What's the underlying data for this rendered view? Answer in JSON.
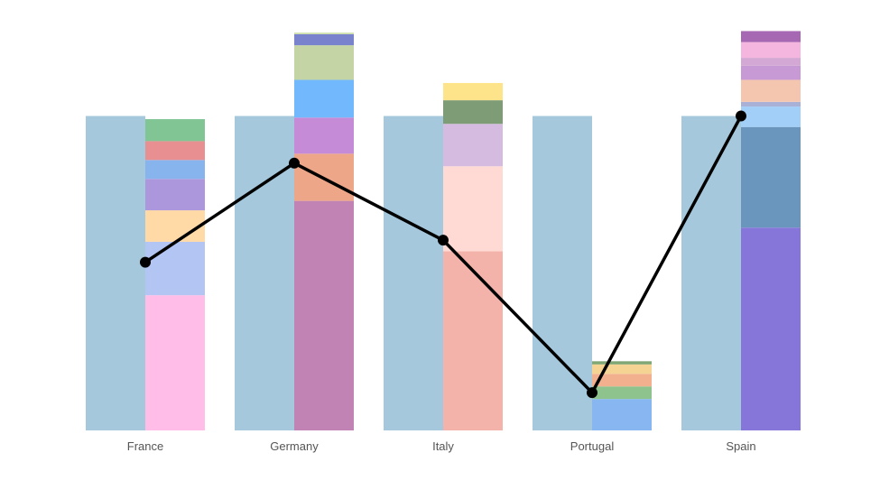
{
  "chart_data": {
    "type": "bar",
    "categories": [
      "France",
      "Germany",
      "Italy",
      "Portugal",
      "Spain"
    ],
    "reference_values": [
      100,
      100,
      100,
      100,
      100
    ],
    "reference_color": "#a5c8dc",
    "ylim": [
      0,
      130
    ],
    "grid": false,
    "legend": "none",
    "stacks": [
      {
        "category": "France",
        "segments": [
          {
            "value": 43,
            "color": "#ffbde8"
          },
          {
            "value": 17,
            "color": "#b3c6f3"
          },
          {
            "value": 10,
            "color": "#ffd9a6"
          },
          {
            "value": 10,
            "color": "#ad97dc"
          },
          {
            "value": 6,
            "color": "#88b4ee"
          },
          {
            "value": 6,
            "color": "#e88f92"
          },
          {
            "value": 7,
            "color": "#82c595"
          }
        ]
      },
      {
        "category": "Germany",
        "segments": [
          {
            "value": 73,
            "color": "#c183b3"
          },
          {
            "value": 15,
            "color": "#eda687"
          },
          {
            "value": 11.5,
            "color": "#c58bd6"
          },
          {
            "value": 12,
            "color": "#71b8fc"
          },
          {
            "value": 11,
            "color": "#c4d4a4"
          },
          {
            "value": 3.5,
            "color": "#7882cd"
          },
          {
            "value": 0.5,
            "color": "#ccddaa"
          }
        ]
      },
      {
        "category": "Italy",
        "segments": [
          {
            "value": 57,
            "color": "#f3b3ab"
          },
          {
            "value": 27,
            "color": "#ffdad5"
          },
          {
            "value": 13.5,
            "color": "#d6bbe0"
          },
          {
            "value": 7.5,
            "color": "#7e9c76"
          },
          {
            "value": 5.5,
            "color": "#fde38a"
          }
        ]
      },
      {
        "category": "Portugal",
        "segments": [
          {
            "value": 10,
            "color": "#88b6f1"
          },
          {
            "value": 4,
            "color": "#8fc38d"
          },
          {
            "value": 4,
            "color": "#f3b08e"
          },
          {
            "value": 3,
            "color": "#f4d393"
          },
          {
            "value": 1,
            "color": "#7fa774"
          }
        ]
      },
      {
        "category": "Spain",
        "segments": [
          {
            "value": 64.5,
            "color": "#8676da"
          },
          {
            "value": 32,
            "color": "#6a96bd"
          },
          {
            "value": 6.5,
            "color": "#a1cff8"
          },
          {
            "value": 1.5,
            "color": "#a9b1d6"
          },
          {
            "value": 7,
            "color": "#f5c6af"
          },
          {
            "value": 4.5,
            "color": "#c79ad6"
          },
          {
            "value": 2.5,
            "color": "#d3a8d4"
          },
          {
            "value": 5,
            "color": "#f4b5de"
          },
          {
            "value": 3.5,
            "color": "#a668b2"
          }
        ]
      }
    ],
    "line_series": {
      "values": [
        53.5,
        85,
        60.5,
        12,
        100
      ],
      "color": "#000000"
    }
  }
}
